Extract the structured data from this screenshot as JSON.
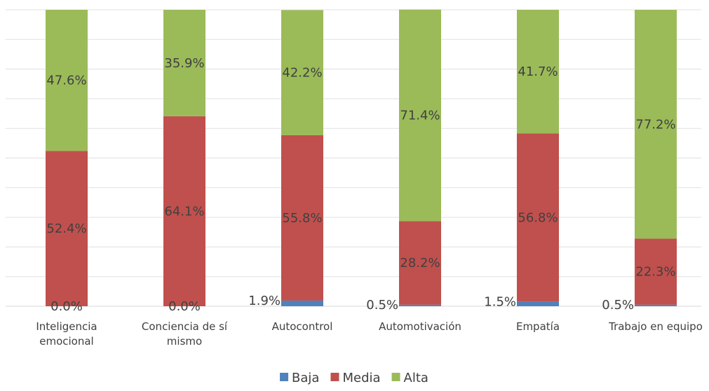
{
  "chart_data": {
    "type": "bar",
    "stacked": true,
    "percent_stacked": true,
    "categories": [
      [
        "Inteligencia",
        "emocional"
      ],
      [
        "Conciencia de sí",
        "mismo"
      ],
      [
        "Autocontrol"
      ],
      [
        "Automotivación"
      ],
      [
        "Empatía"
      ],
      [
        "Trabajo en equipo"
      ]
    ],
    "series": [
      {
        "name": "Baja",
        "color": "#4f81bd",
        "values": [
          0.0,
          0.0,
          1.9,
          0.5,
          1.5,
          0.5
        ],
        "labels": [
          "0.0%",
          "0.0%",
          "1.9%",
          "0.5%",
          "1.5%",
          "0.5%"
        ]
      },
      {
        "name": "Media",
        "color": "#c0504d",
        "values": [
          52.4,
          64.1,
          55.8,
          28.2,
          56.8,
          22.3
        ],
        "labels": [
          "52.4%",
          "64.1%",
          "55.8%",
          "28.2%",
          "56.8%",
          "22.3%"
        ]
      },
      {
        "name": "Alta",
        "color": "#9bbb59",
        "values": [
          47.6,
          35.9,
          42.2,
          71.4,
          41.7,
          77.2
        ],
        "labels": [
          "47.6%",
          "35.9%",
          "42.2%",
          "71.4%",
          "41.7%",
          "77.2%"
        ]
      }
    ],
    "ylim": [
      0,
      100
    ],
    "gridlines": 10,
    "grid": true,
    "legend_position": "bottom"
  }
}
